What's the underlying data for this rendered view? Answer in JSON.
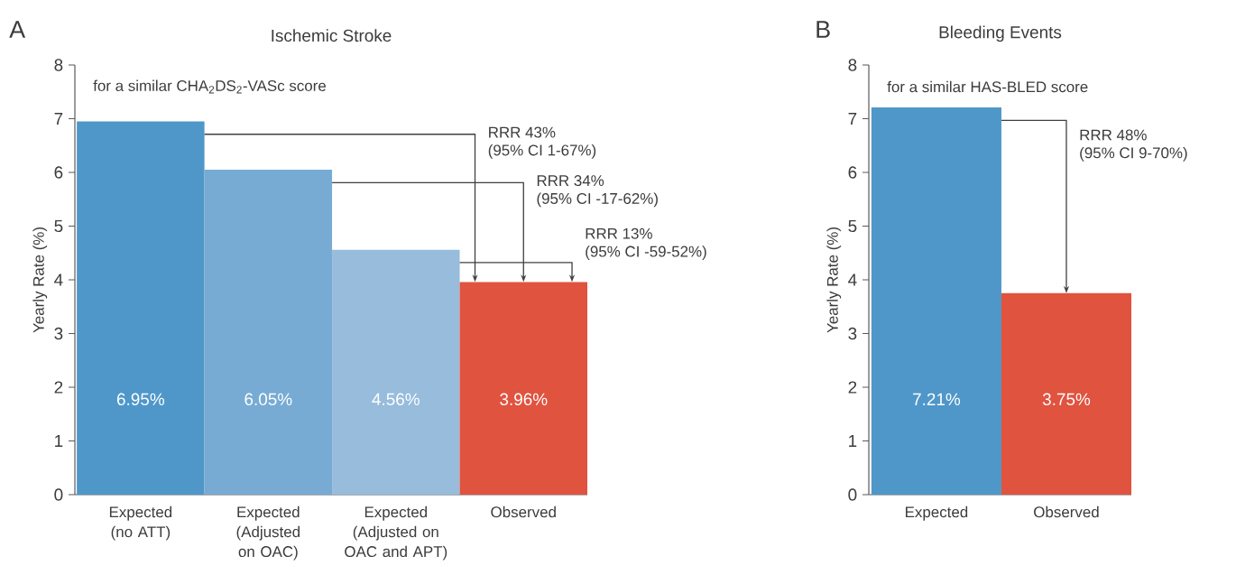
{
  "chart_data": [
    {
      "type": "bar",
      "title": "Ischemic Stroke",
      "ylabel": "Yearly Rate (%)",
      "categories": [
        "Expected (no ATT)",
        "Expected (Adjusted on OAC)",
        "Expected (Adjusted on OAC and APT)",
        "Observed"
      ],
      "values": [
        6.95,
        6.05,
        4.56,
        3.96
      ],
      "colors": [
        "#4f97c9",
        "#78abd3",
        "#97bcdc",
        "#e0533f"
      ],
      "value_labels": [
        "6.95%",
        "6.05%",
        "4.56%",
        "3.96%"
      ],
      "ylim": [
        0,
        8
      ],
      "yticks": [
        0,
        1,
        2,
        3,
        4,
        5,
        6,
        7,
        8
      ],
      "annotations": [
        "A",
        "for a similar CHA$_{2}$DS$_{2}$-VASc score",
        "RRR 43%",
        "(95% CI 1-67%)",
        "RRR 34%",
        "(95% CI -17-62%)",
        "RRR 13%",
        "(95% CI -59-52%)"
      ]
    },
    {
      "type": "bar",
      "title": "Bleeding Events",
      "ylabel": "Yearly Rate (%)",
      "categories": [
        "Expected",
        "Observed"
      ],
      "values": [
        7.21,
        3.75
      ],
      "colors": [
        "#4f97c9",
        "#e0533f"
      ],
      "value_labels": [
        "7.21%",
        "3.75%"
      ],
      "ylim": [
        0,
        8
      ],
      "yticks": [
        0,
        1,
        2,
        3,
        4,
        5,
        6,
        7,
        8
      ],
      "annotations": [
        "B",
        "for a similar HAS-BLED score",
        "RRR 48%",
        "(95% CI 9-70%)"
      ]
    }
  ]
}
